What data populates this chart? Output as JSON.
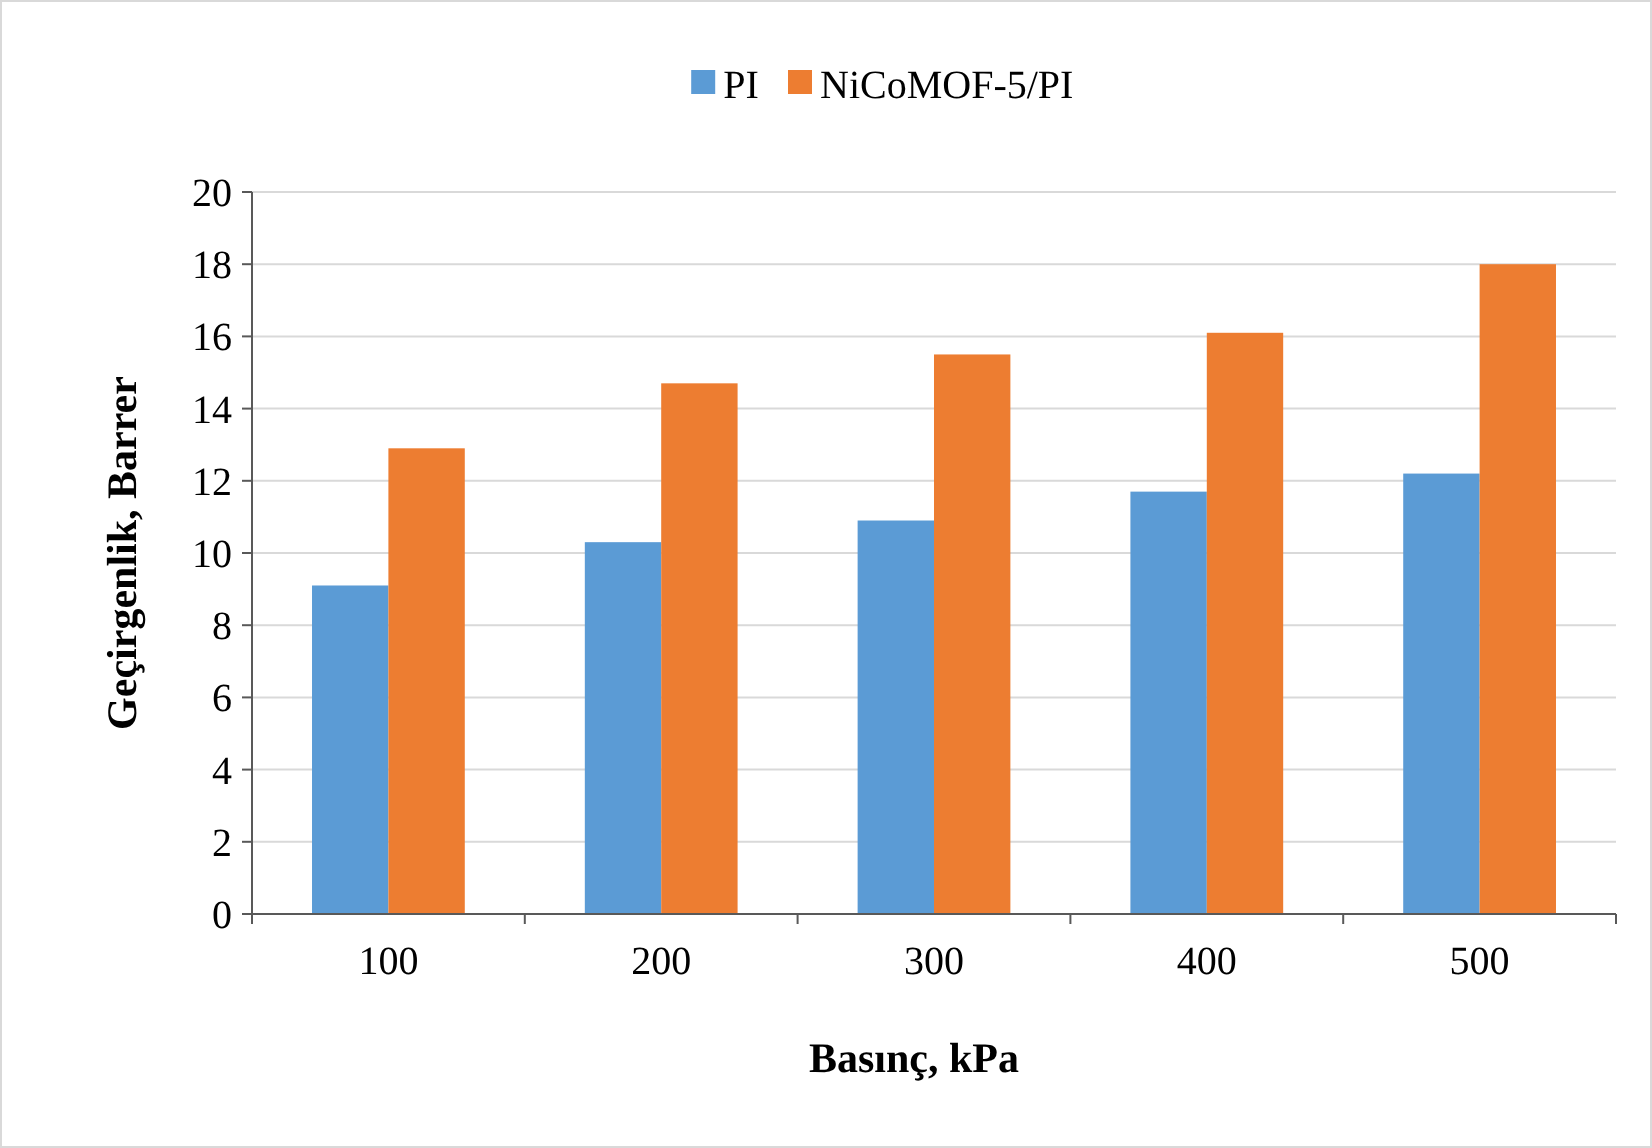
{
  "chart_data": {
    "type": "bar",
    "xlabel": "Basınç, kPa",
    "ylabel": "Geçirgenlik, Barrer",
    "categories": [
      "100",
      "200",
      "300",
      "400",
      "500"
    ],
    "series": [
      {
        "name": "PI",
        "color": "#5b9bd5",
        "values": [
          9.1,
          10.3,
          10.9,
          11.7,
          12.2
        ]
      },
      {
        "name": "NiCoMOF-5/PI",
        "color": "#ed7d31",
        "values": [
          12.9,
          14.7,
          15.5,
          16.1,
          18.0
        ]
      }
    ],
    "ylim": [
      0,
      20
    ],
    "yticks": [
      0,
      2,
      4,
      6,
      8,
      10,
      12,
      14,
      16,
      18,
      20
    ],
    "grid": "y",
    "legend": "top"
  }
}
